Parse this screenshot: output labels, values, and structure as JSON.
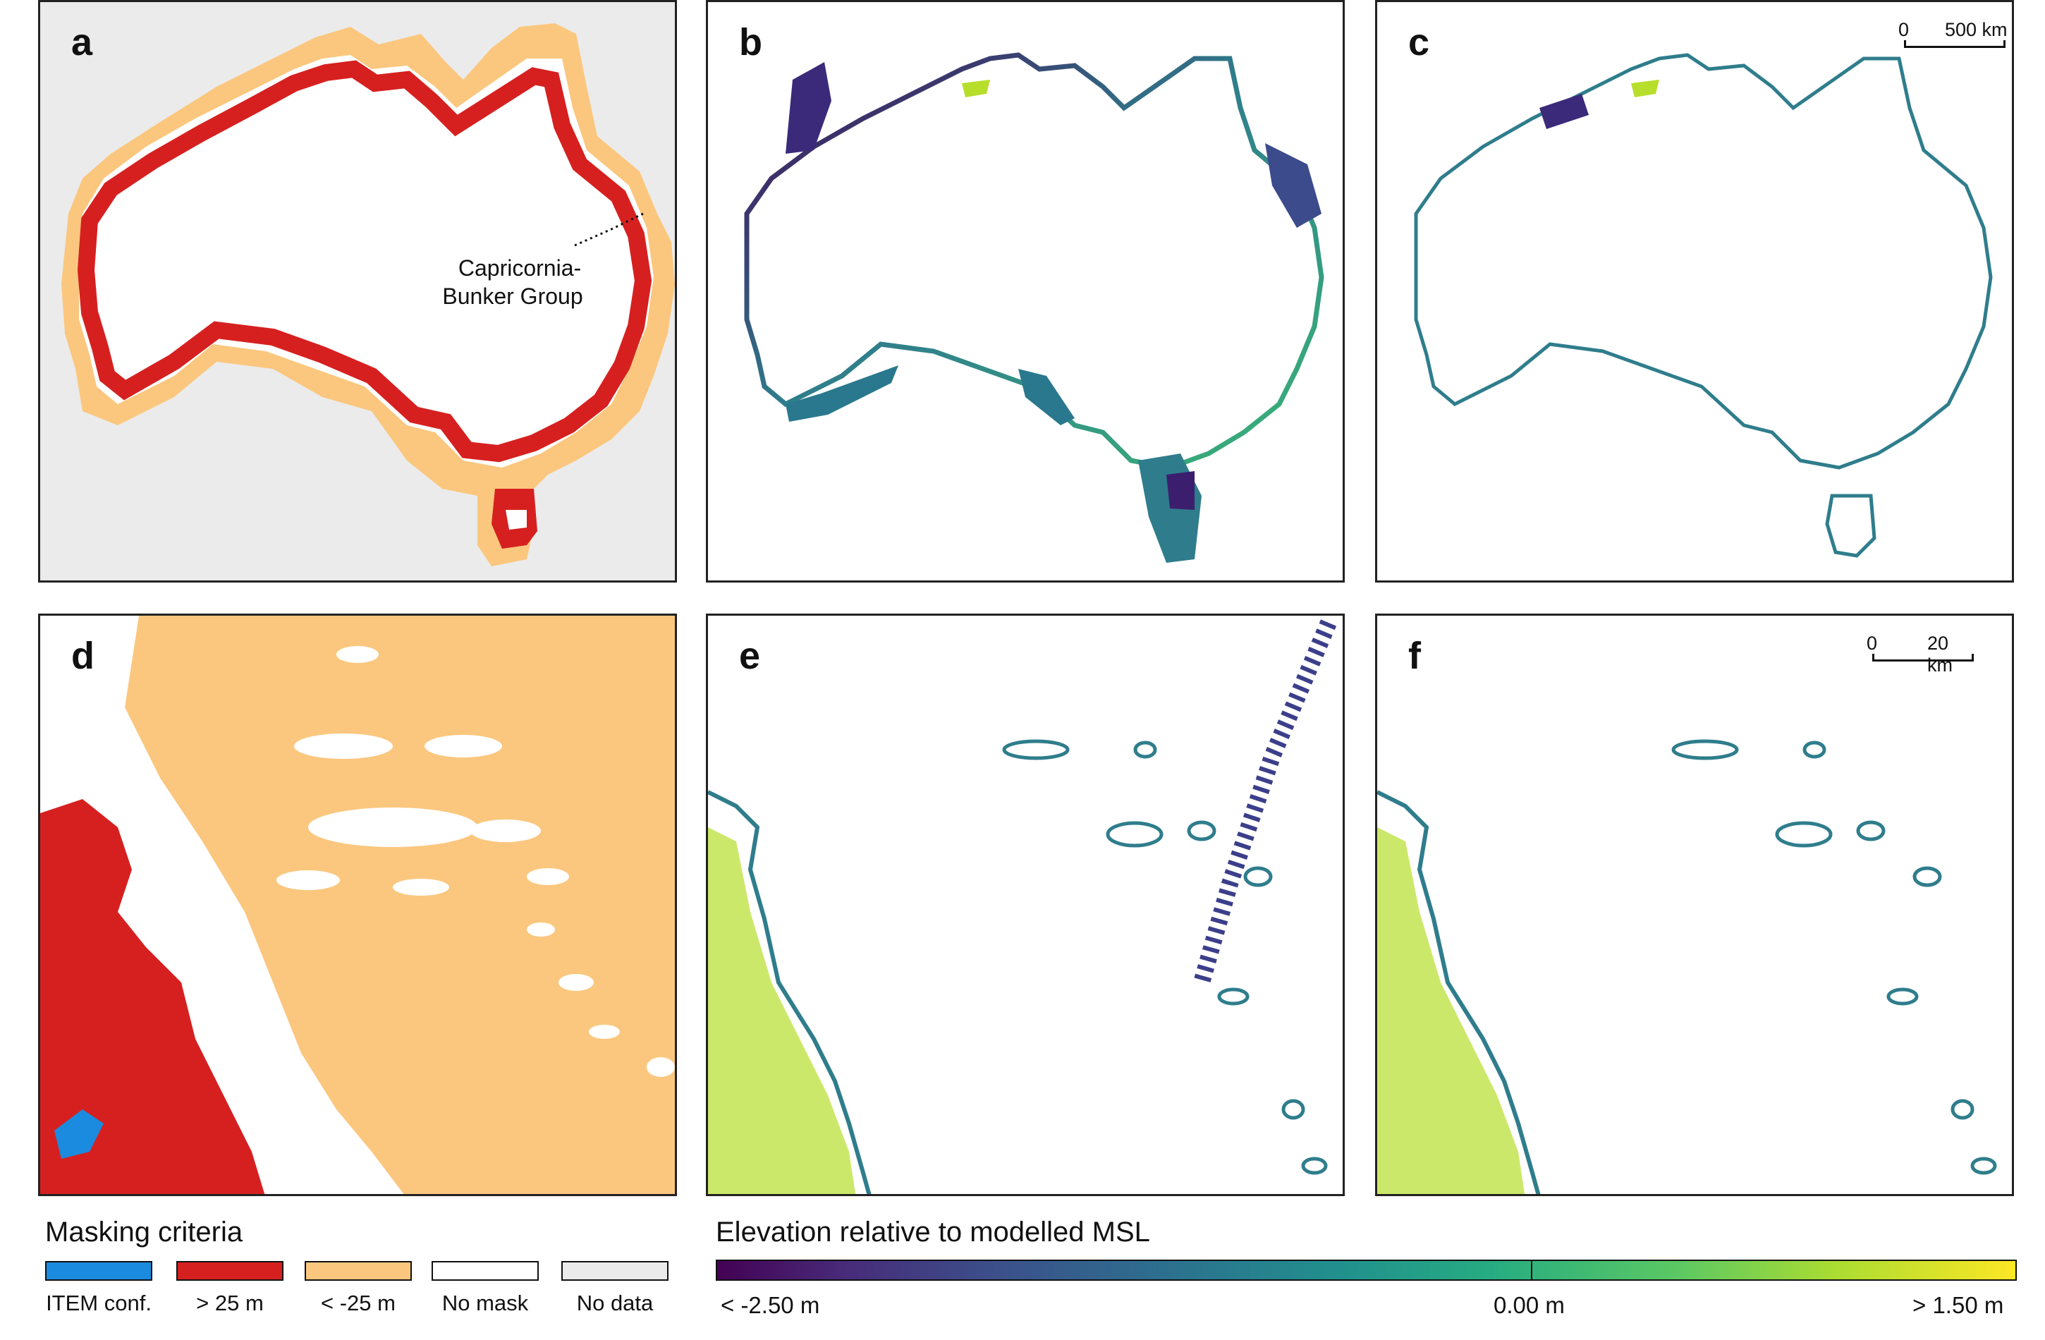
{
  "panels": {
    "a": {
      "label": "a",
      "annotation": [
        "Capricornia-",
        "Bunker Group"
      ]
    },
    "b": {
      "label": "b"
    },
    "c": {
      "label": "c",
      "scale": {
        "zero": "0",
        "end": "500 km"
      }
    },
    "d": {
      "label": "d"
    },
    "e": {
      "label": "e"
    },
    "f": {
      "label": "f",
      "scale": {
        "zero": "0",
        "end": "20 km"
      }
    }
  },
  "masking_legend": {
    "title": "Masking criteria",
    "items": [
      {
        "label": "ITEM conf.",
        "color": "#1b8be0"
      },
      {
        "label": "> 25 m",
        "color": "#d62020"
      },
      {
        "label": "< -25 m",
        "color": "#fbc77e"
      },
      {
        "label": "No mask",
        "color": "#ffffff"
      },
      {
        "label": "No data",
        "color": "#ebebeb"
      }
    ]
  },
  "elevation_legend": {
    "title": "Elevation relative to modelled MSL",
    "min_label": "< -2.50 m",
    "mid_label": "0.00 m",
    "max_label": "> 1.50 m",
    "colormap": "viridis"
  },
  "colors": {
    "high_mask": "#d62020",
    "deep_mask": "#fbc77e",
    "no_data": "#ebebeb",
    "item_conf": "#1b8be0",
    "elevation_mid": "#2f7d8c"
  }
}
